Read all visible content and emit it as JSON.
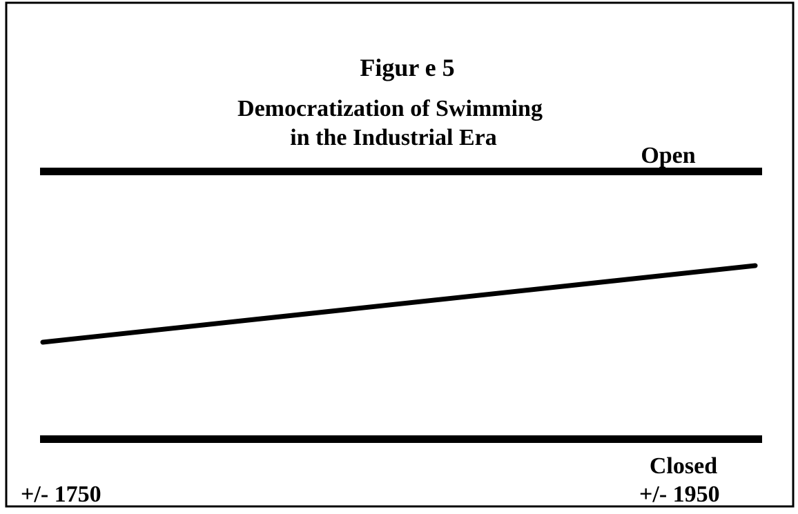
{
  "title": "Figur e 5",
  "subtitle": [
    "Democratization of Swimming",
    "in the Industrial Era"
  ],
  "top_label": "Open",
  "bottom_label": "Closed",
  "start_label": "+/- 1750",
  "end_label": "+/- 1950"
}
